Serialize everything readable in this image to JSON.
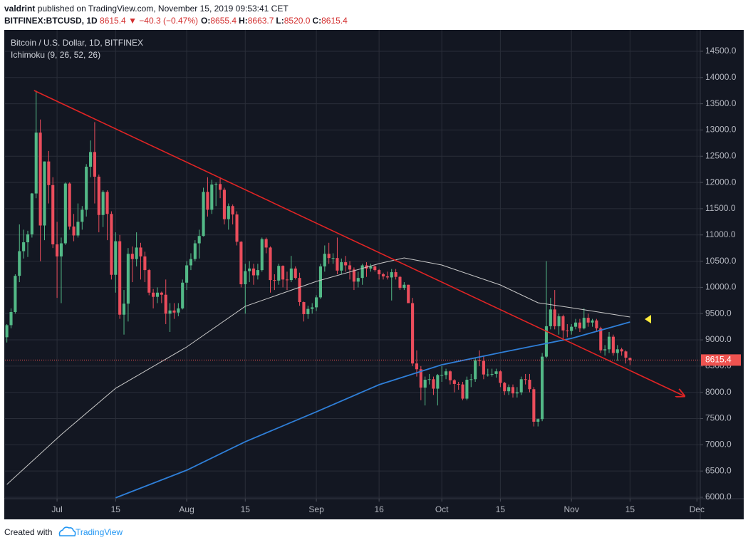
{
  "header": {
    "author": "valdrint",
    "published": "published on TradingView.com, November 15, 2019 09:53:41 CET",
    "symbol": "BITFINEX:BTCUSD, 1D",
    "price": "8615.4",
    "change": "▼ −40.3 (−0.47%)",
    "ohlc": [
      {
        "label": "O:",
        "value": "8655.4"
      },
      {
        "label": "H:",
        "value": "8663.7"
      },
      {
        "label": "L:",
        "value": "8520.0"
      },
      {
        "label": "C:",
        "value": "8615.4"
      }
    ]
  },
  "chart_data": {
    "type": "candlestick",
    "title": "Bitcoin / U.S. Dollar, 1D, BITFINEX",
    "subtitle": "Ichimoku (9, 26, 52, 26)",
    "up_color": "#53b987",
    "down_color": "#eb4d5c",
    "grid": true,
    "ohlc": [
      [
        9050,
        9300,
        8950,
        9280
      ],
      [
        9280,
        9600,
        9220,
        9530
      ],
      [
        9530,
        10250,
        9500,
        10220
      ],
      [
        10220,
        11200,
        10100,
        10690
      ],
      [
        10690,
        11100,
        10550,
        10860
      ],
      [
        10860,
        11080,
        10580,
        11010
      ],
      [
        11010,
        11800,
        10950,
        11790
      ],
      [
        11790,
        13750,
        11700,
        12950
      ],
      [
        12950,
        13200,
        10500,
        11180
      ],
      [
        11180,
        12400,
        10900,
        12400
      ],
      [
        12400,
        12600,
        11600,
        11950
      ],
      [
        11950,
        12100,
        10750,
        10820
      ],
      [
        10820,
        11250,
        9800,
        10590
      ],
      [
        10590,
        10950,
        9700,
        10840
      ],
      [
        10840,
        12000,
        10810,
        11980
      ],
      [
        11980,
        12000,
        11100,
        11160
      ],
      [
        11160,
        11400,
        10880,
        10990
      ],
      [
        10990,
        11600,
        10950,
        11250
      ],
      [
        11250,
        11550,
        11100,
        11480
      ],
      [
        11480,
        12350,
        11350,
        12300
      ],
      [
        12300,
        12800,
        12100,
        12580
      ],
      [
        12580,
        13150,
        11600,
        12110
      ],
      [
        12110,
        12150,
        11050,
        11380
      ],
      [
        11380,
        11850,
        11150,
        11820
      ],
      [
        11820,
        11850,
        10900,
        11400
      ],
      [
        11400,
        11450,
        10150,
        10240
      ],
      [
        10240,
        11050,
        9900,
        10880
      ],
      [
        10880,
        11000,
        9400,
        9480
      ],
      [
        9480,
        9950,
        9100,
        9690
      ],
      [
        9690,
        10750,
        9350,
        10640
      ],
      [
        10640,
        10780,
        10100,
        10540
      ],
      [
        10540,
        11050,
        10400,
        10760
      ],
      [
        10760,
        10850,
        10150,
        10590
      ],
      [
        10590,
        10680,
        10100,
        10330
      ],
      [
        10330,
        10350,
        9850,
        9900
      ],
      [
        9900,
        9970,
        9600,
        9820
      ],
      [
        9820,
        10000,
        9700,
        9900
      ],
      [
        9900,
        9920,
        9700,
        9860
      ],
      [
        9860,
        10150,
        9300,
        9500
      ],
      [
        9500,
        9700,
        9150,
        9560
      ],
      [
        9560,
        9700,
        9400,
        9520
      ],
      [
        9520,
        9700,
        9450,
        9600
      ],
      [
        9600,
        10150,
        9580,
        10090
      ],
      [
        10090,
        10500,
        9950,
        10420
      ],
      [
        10420,
        10650,
        10330,
        10540
      ],
      [
        10540,
        10900,
        10500,
        10840
      ],
      [
        10840,
        11100,
        10550,
        10980
      ],
      [
        10980,
        11900,
        10970,
        11820
      ],
      [
        11820,
        12100,
        11350,
        11480
      ],
      [
        11480,
        12050,
        11400,
        11960
      ],
      [
        11960,
        12000,
        11550,
        11970
      ],
      [
        11970,
        12100,
        11700,
        11860
      ],
      [
        11860,
        11900,
        11200,
        11300
      ],
      [
        11300,
        11600,
        11100,
        11550
      ],
      [
        11550,
        11580,
        11200,
        11390
      ],
      [
        11390,
        11450,
        10800,
        10870
      ],
      [
        10870,
        10880,
        10000,
        10060
      ],
      [
        10060,
        10450,
        9500,
        10310
      ],
      [
        10310,
        10500,
        10100,
        10360
      ],
      [
        10360,
        10450,
        10050,
        10230
      ],
      [
        10230,
        10450,
        10150,
        10330
      ],
      [
        10330,
        10950,
        10300,
        10920
      ],
      [
        10920,
        10950,
        10650,
        10760
      ],
      [
        10760,
        10780,
        9900,
        10140
      ],
      [
        10140,
        10250,
        9950,
        10130
      ],
      [
        10130,
        10450,
        10050,
        10410
      ],
      [
        10410,
        10420,
        10000,
        10150
      ],
      [
        10150,
        10300,
        9950,
        10140
      ],
      [
        10140,
        10600,
        10100,
        10360
      ],
      [
        10360,
        10400,
        10150,
        10180
      ],
      [
        10180,
        10280,
        9650,
        9720
      ],
      [
        9720,
        9730,
        9350,
        9490
      ],
      [
        9490,
        9650,
        9400,
        9590
      ],
      [
        9590,
        9700,
        9500,
        9620
      ],
      [
        9620,
        9850,
        9550,
        9810
      ],
      [
        9810,
        10450,
        9780,
        10400
      ],
      [
        10400,
        10800,
        10300,
        10640
      ],
      [
        10640,
        10850,
        10450,
        10560
      ],
      [
        10560,
        10650,
        10450,
        10560
      ],
      [
        10560,
        10950,
        10250,
        10320
      ],
      [
        10320,
        10550,
        10250,
        10480
      ],
      [
        10480,
        10600,
        10300,
        10420
      ],
      [
        10420,
        10500,
        10150,
        10340
      ],
      [
        10340,
        10380,
        9950,
        10110
      ],
      [
        10110,
        10300,
        10000,
        10180
      ],
      [
        10180,
        10450,
        10050,
        10420
      ],
      [
        10420,
        10480,
        10200,
        10360
      ],
      [
        10360,
        10450,
        10300,
        10400
      ],
      [
        10400,
        10420,
        10300,
        10330
      ],
      [
        10330,
        10350,
        10150,
        10250
      ],
      [
        10250,
        10280,
        10150,
        10210
      ],
      [
        10210,
        10300,
        10150,
        10190
      ],
      [
        10190,
        10350,
        9750,
        10290
      ],
      [
        10290,
        10350,
        10150,
        10200
      ],
      [
        10200,
        10220,
        9950,
        9990
      ],
      [
        9990,
        10100,
        9950,
        10050
      ],
      [
        10050,
        10050,
        9700,
        9700
      ],
      [
        9700,
        9800,
        8500,
        8550
      ],
      [
        8550,
        8800,
        8300,
        8440
      ],
      [
        8440,
        8500,
        7850,
        8090
      ],
      [
        8090,
        8300,
        7750,
        8240
      ],
      [
        8240,
        8350,
        8150,
        8250
      ],
      [
        8250,
        8300,
        7950,
        8070
      ],
      [
        8070,
        8350,
        7750,
        8330
      ],
      [
        8330,
        8500,
        8200,
        8330
      ],
      [
        8330,
        8450,
        8250,
        8400
      ],
      [
        8400,
        8420,
        8150,
        8230
      ],
      [
        8230,
        8250,
        8000,
        8160
      ],
      [
        8160,
        8200,
        8050,
        8150
      ],
      [
        8150,
        8200,
        7850,
        7880
      ],
      [
        7880,
        8300,
        7850,
        8240
      ],
      [
        8240,
        8350,
        8100,
        8250
      ],
      [
        8250,
        8650,
        8200,
        8610
      ],
      [
        8610,
        8800,
        8500,
        8600
      ],
      [
        8600,
        8700,
        8250,
        8340
      ],
      [
        8340,
        8450,
        8300,
        8340
      ],
      [
        8340,
        8450,
        8300,
        8350
      ],
      [
        8350,
        8450,
        8280,
        8400
      ],
      [
        8400,
        8420,
        8100,
        8180
      ],
      [
        8180,
        8200,
        7950,
        8020
      ],
      [
        8020,
        8150,
        7950,
        8100
      ],
      [
        8100,
        8150,
        7900,
        7980
      ],
      [
        7980,
        8100,
        7900,
        8000
      ],
      [
        8000,
        8300,
        7950,
        8250
      ],
      [
        8250,
        8350,
        8150,
        8240
      ],
      [
        8240,
        8350,
        8000,
        8060
      ],
      [
        8060,
        8100,
        7350,
        7440
      ],
      [
        7440,
        7500,
        7350,
        7490
      ],
      [
        7490,
        8750,
        7450,
        8680
      ],
      [
        8680,
        10500,
        8650,
        9260
      ],
      [
        9260,
        9800,
        9200,
        9580
      ],
      [
        9580,
        9950,
        9200,
        9260
      ],
      [
        9260,
        9500,
        9100,
        9450
      ],
      [
        9450,
        9480,
        9000,
        9180
      ],
      [
        9180,
        9300,
        9050,
        9170
      ],
      [
        9170,
        9300,
        9100,
        9250
      ],
      [
        9250,
        9400,
        9200,
        9330
      ],
      [
        9330,
        9400,
        9150,
        9220
      ],
      [
        9220,
        9600,
        9200,
        9420
      ],
      [
        9420,
        9500,
        9250,
        9330
      ],
      [
        9330,
        9400,
        9250,
        9370
      ],
      [
        9370,
        9400,
        9150,
        9220
      ],
      [
        9220,
        9250,
        8750,
        8800
      ],
      [
        8800,
        8900,
        8700,
        8820
      ],
      [
        8820,
        9150,
        8750,
        9060
      ],
      [
        9060,
        9100,
        8700,
        8750
      ],
      [
        8750,
        8900,
        8600,
        8820
      ],
      [
        8820,
        8850,
        8700,
        8780
      ],
      [
        8780,
        8800,
        8550,
        8660
      ],
      [
        8655.4,
        8663.7,
        8520,
        8615.4
      ]
    ],
    "lines": [
      {
        "color": "#c8c8c8",
        "x": [
          0,
          13,
          26,
          43,
          57,
          74,
          89,
          95,
          104,
          118,
          127,
          135,
          149
        ],
        "values": [
          6244,
          7195,
          8077,
          8865,
          9640,
          10114,
          10453,
          10562,
          10426,
          10046,
          9707,
          9612,
          9435
        ]
      },
      {
        "color": "#2f7fd8",
        "x": [
          26,
          43,
          57,
          74,
          89,
          104,
          118,
          135,
          149
        ],
        "values": [
          5990,
          6516,
          7059,
          7629,
          8145,
          8525,
          8756,
          9028,
          9340
        ]
      }
    ],
    "trendline": {
      "color": "#e02424",
      "x": [
        6.5,
        162
      ],
      "values": [
        13753,
        7928
      ]
    },
    "last_price": 8615.4,
    "last_price_color": "#ef5350",
    "xlim": [
      -0.45,
      165.8
    ],
    "ylim": [
      5973,
      14907
    ],
    "xticks": [
      {
        "value": 12,
        "label": "Jul"
      },
      {
        "value": 26,
        "label": "15"
      },
      {
        "value": 43,
        "label": "Aug"
      },
      {
        "value": 57,
        "label": "15"
      },
      {
        "value": 74,
        "label": "Sep"
      },
      {
        "value": 89,
        "label": "16"
      },
      {
        "value": 104,
        "label": "Oct"
      },
      {
        "value": 118,
        "label": "15"
      },
      {
        "value": 135,
        "label": "Nov"
      },
      {
        "value": 149,
        "label": "15"
      },
      {
        "value": 165,
        "label": "Dec"
      }
    ],
    "yticks": [
      {
        "value": 6000,
        "label": "6000.0"
      },
      {
        "value": 6500,
        "label": "6500.0"
      },
      {
        "value": 7000,
        "label": "7000.0"
      },
      {
        "value": 7500,
        "label": "7500.0"
      },
      {
        "value": 8000,
        "label": "8000.0"
      },
      {
        "value": 8500,
        "label": "8500.0"
      },
      {
        "value": 9000,
        "label": "9000.0"
      },
      {
        "value": 9500,
        "label": "9500.0"
      },
      {
        "value": 10000,
        "label": "10000.0"
      },
      {
        "value": 10500,
        "label": "10500.0"
      },
      {
        "value": 11000,
        "label": "11000.0"
      },
      {
        "value": 11500,
        "label": "11500.0"
      },
      {
        "value": 12000,
        "label": "12000.0"
      },
      {
        "value": 12500,
        "label": "12500.0"
      },
      {
        "value": 13000,
        "label": "13000.0"
      },
      {
        "value": 13500,
        "label": "13500.0"
      },
      {
        "value": 14000,
        "label": "14000.0"
      },
      {
        "value": 14500,
        "label": "14500.0"
      }
    ]
  },
  "footer": {
    "created": "Created with",
    "brand": "TradingView"
  }
}
